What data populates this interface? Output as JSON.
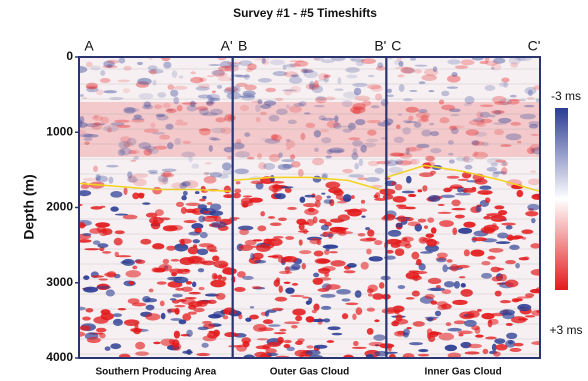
{
  "chart_data": {
    "type": "seismic-section",
    "title": "Survey #1 - #5 Timeshifts",
    "y_label": "Depth (m)",
    "ylim": [
      0,
      4000
    ],
    "yticks": [
      0,
      1000,
      2000,
      3000,
      4000
    ],
    "panels": [
      {
        "left": "A",
        "right": "A'",
        "name": "Southern Producing Area"
      },
      {
        "left": "B",
        "right": "B'",
        "name": "Outer Gas Cloud"
      },
      {
        "left": "C",
        "right": "C'",
        "name": "Inner Gas Cloud"
      }
    ],
    "colorbar": {
      "top_label": "-3 ms",
      "bottom_label": "+3 ms",
      "colors": [
        "#2a3c94",
        "#ffffff",
        "#e31a1c"
      ]
    }
  }
}
